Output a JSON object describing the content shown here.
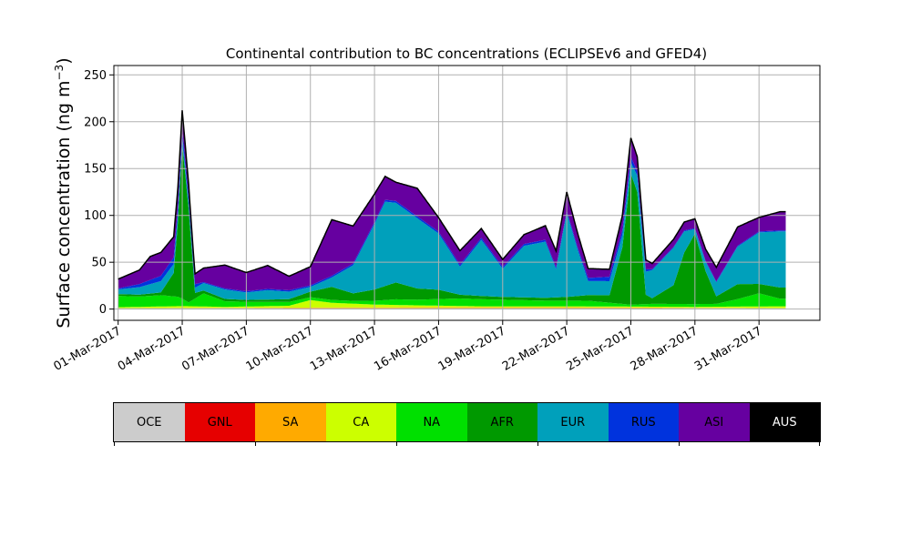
{
  "chart_data": {
    "type": "area",
    "title": "Continental contribution to BC concentrations (ECLIPSEv6 and GFED4)",
    "ylabel_main": "Surface concentration (ng m",
    "ylabel_sup": "−3",
    "ylabel_close": ")",
    "xlabel": "",
    "ylim": [
      -12,
      260
    ],
    "yticks": [
      0,
      50,
      100,
      150,
      200,
      250
    ],
    "x_start": "2017-03-01",
    "x_end": "2017-04-02",
    "xticks": [
      "01-Mar-2017",
      "04-Mar-2017",
      "07-Mar-2017",
      "10-Mar-2017",
      "13-Mar-2017",
      "16-Mar-2017",
      "19-Mar-2017",
      "22-Mar-2017",
      "25-Mar-2017",
      "28-Mar-2017",
      "31-Mar-2017"
    ],
    "grid": true,
    "series": [
      {
        "name": "OCE",
        "color": "#cccccc",
        "points": [
          [
            "2017-03-01",
            1
          ],
          [
            "2017-03-10",
            1
          ],
          [
            "2017-03-20",
            1
          ],
          [
            "2017-04-01",
            1
          ]
        ]
      },
      {
        "name": "GNL",
        "color": "#e60000",
        "points": [
          [
            "2017-03-01",
            0
          ],
          [
            "2017-04-01",
            0
          ]
        ]
      },
      {
        "name": "SA",
        "color": "#ffaa00",
        "points": [
          [
            "2017-03-01",
            0
          ],
          [
            "2017-03-15",
            1
          ],
          [
            "2017-03-22",
            1
          ],
          [
            "2017-04-01",
            0
          ]
        ]
      },
      {
        "name": "CA",
        "color": "#ccff00",
        "points": [
          [
            "2017-03-01",
            1
          ],
          [
            "2017-03-04",
            2
          ],
          [
            "2017-03-06",
            1
          ],
          [
            "2017-03-09",
            2
          ],
          [
            "2017-03-10",
            8
          ],
          [
            "2017-03-11",
            5
          ],
          [
            "2017-03-13",
            3
          ],
          [
            "2017-03-15",
            2
          ],
          [
            "2017-03-18",
            1
          ],
          [
            "2017-03-22",
            1
          ],
          [
            "2017-03-25",
            1
          ],
          [
            "2017-03-28",
            1
          ],
          [
            "2017-04-01",
            2
          ]
        ]
      },
      {
        "name": "NA",
        "color": "#00e000",
        "points": [
          [
            "2017-03-01",
            12
          ],
          [
            "2017-03-02",
            11
          ],
          [
            "2017-03-03",
            12
          ],
          [
            "2017-03-03.8",
            10
          ],
          [
            "2017-03-04",
            8
          ],
          [
            "2017-03-04.3",
            4
          ],
          [
            "2017-03-05",
            14
          ],
          [
            "2017-03-06",
            6
          ],
          [
            "2017-03-07",
            5
          ],
          [
            "2017-03-09",
            4
          ],
          [
            "2017-03-10",
            3
          ],
          [
            "2017-03-11",
            3
          ],
          [
            "2017-03-12",
            3
          ],
          [
            "2017-03-13",
            4
          ],
          [
            "2017-03-14",
            6
          ],
          [
            "2017-03-15",
            6
          ],
          [
            "2017-03-17",
            8
          ],
          [
            "2017-03-19",
            7
          ],
          [
            "2017-03-21",
            6
          ],
          [
            "2017-03-23",
            6
          ],
          [
            "2017-03-24",
            4
          ],
          [
            "2017-03-25",
            2
          ],
          [
            "2017-03-26",
            3
          ],
          [
            "2017-03-27",
            3
          ],
          [
            "2017-03-28",
            3
          ],
          [
            "2017-03-29",
            3
          ],
          [
            "2017-03-30",
            8
          ],
          [
            "2017-03-31",
            14
          ],
          [
            "2017-04-01",
            8
          ]
        ]
      },
      {
        "name": "AFR",
        "color": "#009900",
        "points": [
          [
            "2017-03-01",
            2
          ],
          [
            "2017-03-02",
            2
          ],
          [
            "2017-03-03",
            3
          ],
          [
            "2017-03-03.6",
            25
          ],
          [
            "2017-03-03.8",
            80
          ],
          [
            "2017-03-04",
            165
          ],
          [
            "2017-03-04.3",
            100
          ],
          [
            "2017-03-04.6",
            6
          ],
          [
            "2017-03-05",
            3
          ],
          [
            "2017-03-07",
            2
          ],
          [
            "2017-03-09",
            3
          ],
          [
            "2017-03-10",
            6
          ],
          [
            "2017-03-11",
            14
          ],
          [
            "2017-03-12",
            8
          ],
          [
            "2017-03-13",
            12
          ],
          [
            "2017-03-14",
            18
          ],
          [
            "2017-03-15",
            12
          ],
          [
            "2017-03-16",
            10
          ],
          [
            "2017-03-17",
            4
          ],
          [
            "2017-03-19",
            3
          ],
          [
            "2017-03-21",
            3
          ],
          [
            "2017-03-22",
            4
          ],
          [
            "2017-03-23",
            6
          ],
          [
            "2017-03-24",
            8
          ],
          [
            "2017-03-24.6",
            60
          ],
          [
            "2017-03-25",
            140
          ],
          [
            "2017-03-25.3",
            120
          ],
          [
            "2017-03-25.7",
            10
          ],
          [
            "2017-03-26",
            6
          ],
          [
            "2017-03-27",
            20
          ],
          [
            "2017-03-27.5",
            55
          ],
          [
            "2017-03-28",
            75
          ],
          [
            "2017-03-28.5",
            35
          ],
          [
            "2017-03-29",
            8
          ],
          [
            "2017-03-30",
            16
          ],
          [
            "2017-03-31",
            10
          ],
          [
            "2017-04-01",
            12
          ]
        ]
      },
      {
        "name": "EUR",
        "color": "#00a0bb",
        "points": [
          [
            "2017-03-01",
            5
          ],
          [
            "2017-03-02",
            8
          ],
          [
            "2017-03-03",
            12
          ],
          [
            "2017-03-04",
            8
          ],
          [
            "2017-03-04.5",
            5
          ],
          [
            "2017-03-05",
            8
          ],
          [
            "2017-03-06",
            10
          ],
          [
            "2017-03-07",
            8
          ],
          [
            "2017-03-08",
            10
          ],
          [
            "2017-03-09",
            8
          ],
          [
            "2017-03-10",
            5
          ],
          [
            "2017-03-11",
            10
          ],
          [
            "2017-03-12",
            30
          ],
          [
            "2017-03-13",
            70
          ],
          [
            "2017-03-13.5",
            90
          ],
          [
            "2017-03-14",
            85
          ],
          [
            "2017-03-15",
            75
          ],
          [
            "2017-03-16",
            60
          ],
          [
            "2017-03-17",
            30
          ],
          [
            "2017-03-18",
            60
          ],
          [
            "2017-03-19",
            30
          ],
          [
            "2017-03-20",
            55
          ],
          [
            "2017-03-21",
            60
          ],
          [
            "2017-03-21.5",
            30
          ],
          [
            "2017-03-22",
            90
          ],
          [
            "2017-03-22.5",
            50
          ],
          [
            "2017-03-23",
            15
          ],
          [
            "2017-03-24",
            15
          ],
          [
            "2017-03-25",
            12
          ],
          [
            "2017-03-26",
            30
          ],
          [
            "2017-03-27",
            40
          ],
          [
            "2017-03-28",
            5
          ],
          [
            "2017-03-29",
            15
          ],
          [
            "2017-03-30",
            40
          ],
          [
            "2017-03-31",
            55
          ],
          [
            "2017-04-01",
            60
          ]
        ]
      },
      {
        "name": "RUS",
        "color": "#0033dd",
        "points": [
          [
            "2017-03-01",
            1
          ],
          [
            "2017-03-04",
            8
          ],
          [
            "2017-03-05",
            1
          ],
          [
            "2017-03-13",
            2
          ],
          [
            "2017-03-22",
            2
          ],
          [
            "2017-03-25",
            6
          ],
          [
            "2017-03-26",
            1
          ],
          [
            "2017-04-01",
            1
          ]
        ]
      },
      {
        "name": "ASI",
        "color": "#6600a0",
        "points": [
          [
            "2017-03-01",
            10
          ],
          [
            "2017-03-02",
            15
          ],
          [
            "2017-03-02.5",
            25
          ],
          [
            "2017-03-03",
            25
          ],
          [
            "2017-03-04",
            20
          ],
          [
            "2017-03-04.5",
            10
          ],
          [
            "2017-03-05",
            15
          ],
          [
            "2017-03-06",
            25
          ],
          [
            "2017-03-07",
            20
          ],
          [
            "2017-03-08",
            25
          ],
          [
            "2017-03-09",
            15
          ],
          [
            "2017-03-10",
            20
          ],
          [
            "2017-03-11",
            60
          ],
          [
            "2017-03-12",
            40
          ],
          [
            "2017-03-13",
            30
          ],
          [
            "2017-03-14",
            20
          ],
          [
            "2017-03-15",
            30
          ],
          [
            "2017-03-16",
            15
          ],
          [
            "2017-03-17",
            15
          ],
          [
            "2017-03-18",
            10
          ],
          [
            "2017-03-19",
            8
          ],
          [
            "2017-03-20",
            10
          ],
          [
            "2017-03-21",
            15
          ],
          [
            "2017-03-22",
            20
          ],
          [
            "2017-03-23",
            10
          ],
          [
            "2017-03-24",
            8
          ],
          [
            "2017-03-25",
            20
          ],
          [
            "2017-03-26",
            6
          ],
          [
            "2017-03-27",
            8
          ],
          [
            "2017-03-28",
            10
          ],
          [
            "2017-03-29",
            15
          ],
          [
            "2017-03-30",
            20
          ],
          [
            "2017-03-31",
            15
          ],
          [
            "2017-04-01",
            20
          ]
        ]
      },
      {
        "name": "AUS",
        "color": "#000000",
        "points": [
          [
            "2017-03-01",
            0
          ],
          [
            "2017-04-01",
            0
          ]
        ]
      }
    ],
    "colorbar": {
      "labels": [
        "OCE",
        "GNL",
        "SA",
        "CA",
        "NA",
        "AFR",
        "EUR",
        "RUS",
        "ASI",
        "AUS"
      ],
      "colors": [
        "#cccccc",
        "#e60000",
        "#ffaa00",
        "#ccff00",
        "#00e000",
        "#009900",
        "#00a0bb",
        "#0033dd",
        "#6600a0",
        "#000000"
      ],
      "text_colors": [
        "#000000",
        "#000000",
        "#000000",
        "#000000",
        "#000000",
        "#000000",
        "#000000",
        "#000000",
        "#000000",
        "#ffffff"
      ]
    }
  }
}
